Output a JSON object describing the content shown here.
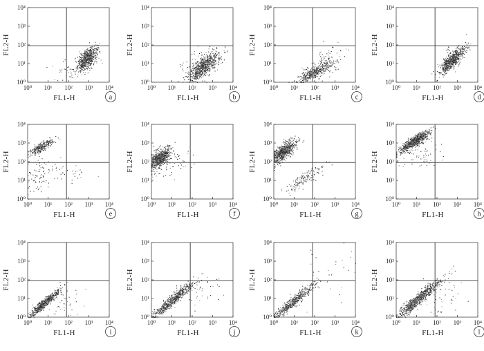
{
  "figure": {
    "panel_count": 12,
    "layout": "3 rows x 4 columns"
  },
  "chart_data": [
    {
      "type": "scatter",
      "letter": "a",
      "xlabel": "FL1-H",
      "ylabel": "FL2-H",
      "log_scale": true,
      "xlim": [
        1,
        10000
      ],
      "ylim": [
        1,
        10000
      ],
      "quadrant_lines": {
        "x": 80,
        "y": 90
      },
      "tick_labels": [
        "10⁰",
        "10¹",
        "10²",
        "10³",
        "10⁴"
      ],
      "clusters": [
        {
          "mx": 2.9,
          "my": 1.25,
          "sx": 0.24,
          "sy": 0.3,
          "rho": 0.5,
          "n": 650
        },
        {
          "mx": 2.2,
          "my": 0.7,
          "sx": 0.5,
          "sy": 0.35,
          "rho": 0.3,
          "n": 50
        }
      ]
    },
    {
      "type": "scatter",
      "letter": "b",
      "xlabel": "FL1-H",
      "ylabel": "FL2-H",
      "log_scale": true,
      "xlim": [
        1,
        10000
      ],
      "ylim": [
        1,
        10000
      ],
      "quadrant_lines": {
        "x": 80,
        "y": 90
      },
      "tick_labels": [
        "10⁰",
        "10¹",
        "10²",
        "10³",
        "10⁴"
      ],
      "clusters": [
        {
          "mx": 2.55,
          "my": 0.85,
          "sx": 0.38,
          "sy": 0.38,
          "rho": 0.75,
          "n": 700
        },
        {
          "mx": 2.3,
          "my": 1.0,
          "sx": 0.5,
          "sy": 0.4,
          "rho": 0.3,
          "n": 60
        }
      ]
    },
    {
      "type": "scatter",
      "letter": "c",
      "xlabel": "FL1-H",
      "ylabel": "FL2-H",
      "log_scale": true,
      "xlim": [
        1,
        10000
      ],
      "ylim": [
        1,
        10000
      ],
      "quadrant_lines": {
        "x": 80,
        "y": 90
      },
      "tick_labels": [
        "10⁰",
        "10¹",
        "10²",
        "10³",
        "10⁴"
      ],
      "clusters": [
        {
          "mx": 2.0,
          "my": 0.55,
          "sx": 0.45,
          "sy": 0.3,
          "rho": 0.8,
          "n": 420
        },
        {
          "mx": 2.5,
          "my": 1.1,
          "sx": 0.45,
          "sy": 0.45,
          "rho": 0.5,
          "n": 80
        }
      ]
    },
    {
      "type": "scatter",
      "letter": "d",
      "xlabel": "FL1-H",
      "ylabel": "FL2-H",
      "log_scale": true,
      "xlim": [
        1,
        10000
      ],
      "ylim": [
        1,
        10000
      ],
      "quadrant_lines": {
        "x": 80,
        "y": 90
      },
      "tick_labels": [
        "10⁰",
        "10¹",
        "10²",
        "10³",
        "10⁴"
      ],
      "clusters": [
        {
          "mx": 2.7,
          "my": 1.15,
          "sx": 0.3,
          "sy": 0.33,
          "rho": 0.8,
          "n": 650
        },
        {
          "mx": 3.0,
          "my": 1.6,
          "sx": 0.35,
          "sy": 0.3,
          "rho": 0.5,
          "n": 50
        }
      ]
    },
    {
      "type": "scatter",
      "letter": "e",
      "xlabel": "FL1-H",
      "ylabel": "FL2-H",
      "log_scale": true,
      "xlim": [
        1,
        10000
      ],
      "ylim": [
        1,
        10000
      ],
      "quadrant_lines": {
        "x": 80,
        "y": 90
      },
      "tick_labels": [
        "10⁰",
        "10¹",
        "10²",
        "10³",
        "10⁴"
      ],
      "clusters": [
        {
          "mx": 0.65,
          "my": 2.8,
          "sx": 0.3,
          "sy": 0.2,
          "rho": 0.8,
          "n": 300
        },
        {
          "mx": 0.6,
          "my": 1.3,
          "sx": 0.4,
          "sy": 0.5,
          "rho": 0.2,
          "n": 90
        },
        {
          "mx": 2.2,
          "my": 1.4,
          "sx": 0.4,
          "sy": 0.3,
          "rho": 0.3,
          "n": 25
        }
      ]
    },
    {
      "type": "scatter",
      "letter": "f",
      "xlabel": "FL1-H",
      "ylabel": "FL2-H",
      "log_scale": true,
      "xlim": [
        1,
        10000
      ],
      "ylim": [
        1,
        10000
      ],
      "quadrant_lines": {
        "x": 80,
        "y": 90
      },
      "tick_labels": [
        "10⁰",
        "10¹",
        "10²",
        "10³",
        "10⁴"
      ],
      "clusters": [
        {
          "mx": 0.4,
          "my": 2.2,
          "sx": 0.25,
          "sy": 0.25,
          "rho": 0.6,
          "n": 650
        },
        {
          "mx": 0.8,
          "my": 1.9,
          "sx": 0.6,
          "sy": 0.5,
          "rho": 0.4,
          "n": 80
        }
      ]
    },
    {
      "type": "scatter",
      "letter": "g",
      "xlabel": "FL1-H",
      "ylabel": "FL2-H",
      "log_scale": true,
      "xlim": [
        1,
        10000
      ],
      "ylim": [
        1,
        10000
      ],
      "quadrant_lines": {
        "x": 80,
        "y": 90
      },
      "tick_labels": [
        "10⁰",
        "10¹",
        "10²",
        "10³",
        "10⁴"
      ],
      "clusters": [
        {
          "mx": 0.45,
          "my": 2.55,
          "sx": 0.3,
          "sy": 0.3,
          "rho": 0.7,
          "n": 700
        },
        {
          "mx": 1.5,
          "my": 1.1,
          "sx": 0.45,
          "sy": 0.35,
          "rho": 0.85,
          "n": 150
        }
      ]
    },
    {
      "type": "scatter",
      "letter": "h",
      "xlabel": "FL1-H",
      "ylabel": "FL2-H",
      "log_scale": true,
      "xlim": [
        1,
        10000
      ],
      "ylim": [
        1,
        10000
      ],
      "quadrant_lines": {
        "x": 80,
        "y": 90
      },
      "tick_labels": [
        "10⁰",
        "10¹",
        "10²",
        "10³",
        "10⁴"
      ],
      "clusters": [
        {
          "mx": 0.9,
          "my": 3.1,
          "sx": 0.35,
          "sy": 0.28,
          "rho": 0.85,
          "n": 750
        },
        {
          "mx": 1.2,
          "my": 2.4,
          "sx": 0.5,
          "sy": 0.4,
          "rho": 0.4,
          "n": 60
        }
      ]
    },
    {
      "type": "scatter",
      "letter": "i",
      "xlabel": "FL1-H",
      "ylabel": "FL2-H",
      "log_scale": true,
      "xlim": [
        1,
        10000
      ],
      "ylim": [
        1,
        10000
      ],
      "quadrant_lines": {
        "x": 80,
        "y": 90
      },
      "tick_labels": [
        "10⁰",
        "10¹",
        "10²",
        "10³",
        "10⁴"
      ],
      "clusters": [
        {
          "mx": 0.8,
          "my": 0.75,
          "sx": 0.38,
          "sy": 0.37,
          "rho": 0.95,
          "n": 650
        },
        {
          "mx": 1.8,
          "my": 0.8,
          "sx": 0.4,
          "sy": 0.4,
          "rho": 0.3,
          "n": 40
        }
      ]
    },
    {
      "type": "scatter",
      "letter": "j",
      "xlabel": "FL1-H",
      "ylabel": "FL2-H",
      "log_scale": true,
      "xlim": [
        1,
        10000
      ],
      "ylim": [
        1,
        10000
      ],
      "quadrant_lines": {
        "x": 80,
        "y": 90
      },
      "tick_labels": [
        "10⁰",
        "10¹",
        "10²",
        "10³",
        "10⁴"
      ],
      "clusters": [
        {
          "mx": 1.0,
          "my": 0.9,
          "sx": 0.5,
          "sy": 0.48,
          "rho": 0.95,
          "n": 650
        },
        {
          "mx": 2.4,
          "my": 1.4,
          "sx": 0.6,
          "sy": 0.5,
          "rho": 0.3,
          "n": 40
        }
      ]
    },
    {
      "type": "scatter",
      "letter": "k",
      "xlabel": "FL1-H",
      "ylabel": "FL2-H",
      "log_scale": true,
      "xlim": [
        1,
        10000
      ],
      "ylim": [
        1,
        10000
      ],
      "quadrant_lines": {
        "x": 80,
        "y": 90
      },
      "tick_labels": [
        "10⁰",
        "10¹",
        "10²",
        "10³",
        "10⁴"
      ],
      "clusters": [
        {
          "mx": 0.9,
          "my": 0.8,
          "sx": 0.55,
          "sy": 0.52,
          "rho": 0.96,
          "n": 550
        },
        {
          "mx": 2.5,
          "my": 2.3,
          "sx": 0.9,
          "sy": 0.9,
          "rho": 0.4,
          "n": 30
        }
      ]
    },
    {
      "type": "scatter",
      "letter": "l",
      "xlabel": "FL1-H",
      "ylabel": "FL2-H",
      "log_scale": true,
      "xlim": [
        1,
        10000
      ],
      "ylim": [
        1,
        10000
      ],
      "quadrant_lines": {
        "x": 80,
        "y": 90
      },
      "tick_labels": [
        "10⁰",
        "10¹",
        "10²",
        "10³",
        "10⁴"
      ],
      "clusters": [
        {
          "mx": 1.1,
          "my": 1.0,
          "sx": 0.55,
          "sy": 0.53,
          "rho": 0.95,
          "n": 800
        },
        {
          "mx": 2.3,
          "my": 1.2,
          "sx": 0.6,
          "sy": 0.6,
          "rho": 0.3,
          "n": 50
        }
      ]
    }
  ]
}
